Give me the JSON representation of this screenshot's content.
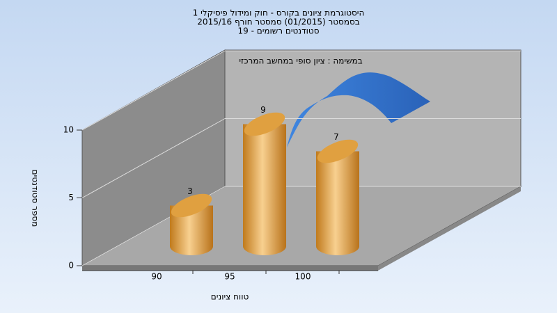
{
  "chart_data": {
    "type": "bar",
    "title": [
      "היסטוגרמת ציונים בקורס - חוק ומידול פיסיקלי 1",
      "בסמסטר (01/2015) סמסטר חורף 2015/16",
      "סטודנטים רשומים - 19"
    ],
    "subtitle": "במשימה : ציון סופי במחשב המרכזי",
    "x_label": "טווח ציונים",
    "y_label": "מספר סטודנטים",
    "categories": [
      "90",
      "95",
      "100"
    ],
    "values": [
      3,
      9,
      7
    ],
    "color": "#e0a040",
    "ylim": [
      0,
      10
    ],
    "yticks": [
      0,
      5,
      10
    ],
    "grid": true
  }
}
